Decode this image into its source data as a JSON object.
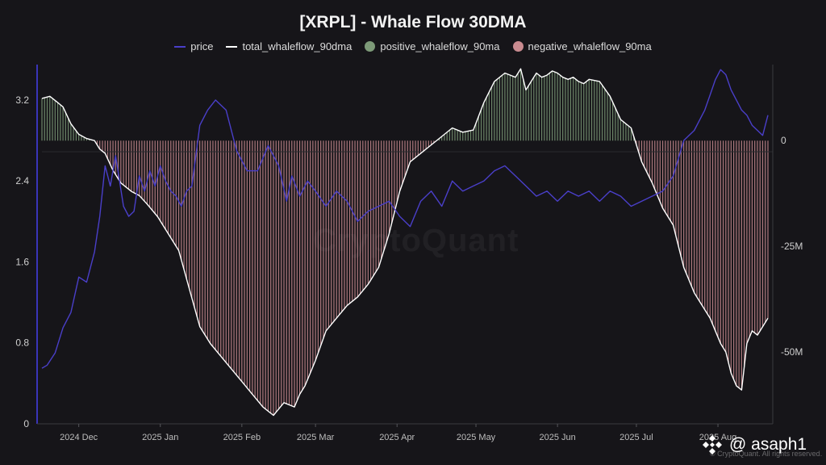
{
  "chart_data": {
    "type": "area",
    "title": "[XRPL] - Whale Flow 30DMA",
    "legend": [
      {
        "name": "price",
        "kind": "line",
        "color": "#4a3fc9"
      },
      {
        "name": "total_whaleflow_90dma",
        "kind": "line",
        "color": "#ffffff"
      },
      {
        "name": "positive_whaleflow_90ma",
        "kind": "dot",
        "color": "#7d9a78"
      },
      {
        "name": "negative_whaleflow_90ma",
        "kind": "dot",
        "color": "#c98b90"
      }
    ],
    "legend_position": "top-center",
    "x_tick_labels": [
      "2024 Dec",
      "2025 Jan",
      "2025 Feb",
      "2025 Mar",
      "2025 Apr",
      "2025 May",
      "2025 Jun",
      "2025 Jul",
      "2025 Aug"
    ],
    "y_left": {
      "ticks": [
        0,
        0.8,
        1.6,
        2.4,
        3.2
      ],
      "tick_labels": [
        "0",
        "0.8",
        "1.6",
        "2.4",
        "3.2"
      ],
      "range": [
        0,
        3.55
      ]
    },
    "y_right": {
      "ticks": [
        0,
        -25000000,
        -50000000
      ],
      "tick_labels": [
        "0",
        "-25M",
        "-50M"
      ],
      "range": [
        -67000000,
        18000000
      ]
    },
    "grid": false,
    "price": {
      "x_days": [
        0,
        2,
        5,
        8,
        11,
        14,
        17,
        20,
        22,
        24,
        26,
        28,
        31,
        33,
        35,
        37,
        39,
        41,
        43,
        45,
        47,
        49,
        51,
        53,
        55,
        57,
        60,
        63,
        66,
        70,
        74,
        78,
        82,
        86,
        90,
        93,
        95,
        98,
        101,
        104,
        108,
        112,
        116,
        120,
        124,
        128,
        132,
        136,
        140,
        144,
        148,
        152,
        156,
        160,
        164,
        168,
        172,
        176,
        180,
        184,
        188,
        192,
        196,
        200,
        204,
        208,
        212,
        216,
        220,
        224,
        228,
        232,
        236,
        240,
        244,
        248,
        250,
        252,
        254,
        256,
        258,
        260,
        262,
        264,
        266,
        268,
        270,
        272,
        274,
        276
      ],
      "values": [
        0.55,
        0.58,
        0.7,
        0.95,
        1.1,
        1.45,
        1.4,
        1.7,
        2.05,
        2.55,
        2.35,
        2.65,
        2.15,
        2.05,
        2.1,
        2.45,
        2.3,
        2.5,
        2.35,
        2.55,
        2.4,
        2.3,
        2.25,
        2.15,
        2.3,
        2.35,
        2.95,
        3.1,
        3.2,
        3.1,
        2.7,
        2.5,
        2.5,
        2.75,
        2.55,
        2.2,
        2.45,
        2.25,
        2.4,
        2.3,
        2.15,
        2.3,
        2.2,
        2.0,
        2.1,
        2.15,
        2.2,
        2.05,
        1.95,
        2.2,
        2.3,
        2.15,
        2.4,
        2.3,
        2.35,
        2.4,
        2.5,
        2.55,
        2.45,
        2.35,
        2.25,
        2.3,
        2.2,
        2.3,
        2.25,
        2.3,
        2.2,
        2.3,
        2.25,
        2.15,
        2.2,
        2.25,
        2.3,
        2.45,
        2.8,
        2.9,
        3.0,
        3.1,
        3.25,
        3.4,
        3.5,
        3.45,
        3.3,
        3.2,
        3.1,
        3.05,
        2.95,
        2.9,
        2.85,
        3.05
      ]
    },
    "total_whaleflow_90dma": {
      "x_days": [
        0,
        3,
        6,
        8,
        11,
        14,
        17,
        20,
        22,
        24,
        27,
        30,
        32,
        34,
        37,
        40,
        44,
        48,
        52,
        56,
        60,
        64,
        68,
        72,
        76,
        80,
        84,
        88,
        92,
        96,
        98,
        100,
        104,
        108,
        112,
        116,
        120,
        124,
        128,
        132,
        136,
        140,
        144,
        148,
        152,
        156,
        160,
        164,
        168,
        172,
        176,
        180,
        182,
        184,
        186,
        188,
        190,
        192,
        194,
        196,
        198,
        200,
        202,
        204,
        206,
        208,
        212,
        216,
        220,
        224,
        228,
        232,
        236,
        240,
        242,
        244,
        246,
        248,
        250,
        252,
        254,
        256,
        258,
        260,
        262,
        264,
        266,
        268,
        270,
        272,
        274,
        276
      ],
      "values": [
        10000000,
        10500000,
        9000000,
        8000000,
        4000000,
        1500000,
        500000,
        0,
        -2000000,
        -3000000,
        -7000000,
        -10000000,
        -11000000,
        -12000000,
        -13000000,
        -15000000,
        -18000000,
        -22000000,
        -26000000,
        -35000000,
        -44000000,
        -48000000,
        -51000000,
        -54000000,
        -57000000,
        -60000000,
        -63000000,
        -65000000,
        -62000000,
        -63000000,
        -60000000,
        -58000000,
        -52000000,
        -45000000,
        -42000000,
        -39000000,
        -37000000,
        -34000000,
        -30000000,
        -22000000,
        -12000000,
        -5000000,
        -3000000,
        -1000000,
        1000000,
        3000000,
        2000000,
        2500000,
        9000000,
        14000000,
        16000000,
        15000000,
        17000000,
        12000000,
        14000000,
        16000000,
        15000000,
        15500000,
        16500000,
        16000000,
        15000000,
        14500000,
        15000000,
        14000000,
        13500000,
        14500000,
        14000000,
        10500000,
        5000000,
        3000000,
        -5000000,
        -10000000,
        -16000000,
        -20000000,
        -25000000,
        -30000000,
        -33000000,
        -36000000,
        -38000000,
        -40000000,
        -42000000,
        -45000000,
        -48000000,
        -50000000,
        -55000000,
        -58000000,
        -59000000,
        -48000000,
        -45000000,
        -46000000,
        -44000000,
        -42000000
      ]
    }
  },
  "watermark": {
    "brand": "CryptoQuant",
    "footer": "© CryptoQuant. All rights reserved."
  },
  "badge": {
    "handle": "@ asaph1"
  }
}
